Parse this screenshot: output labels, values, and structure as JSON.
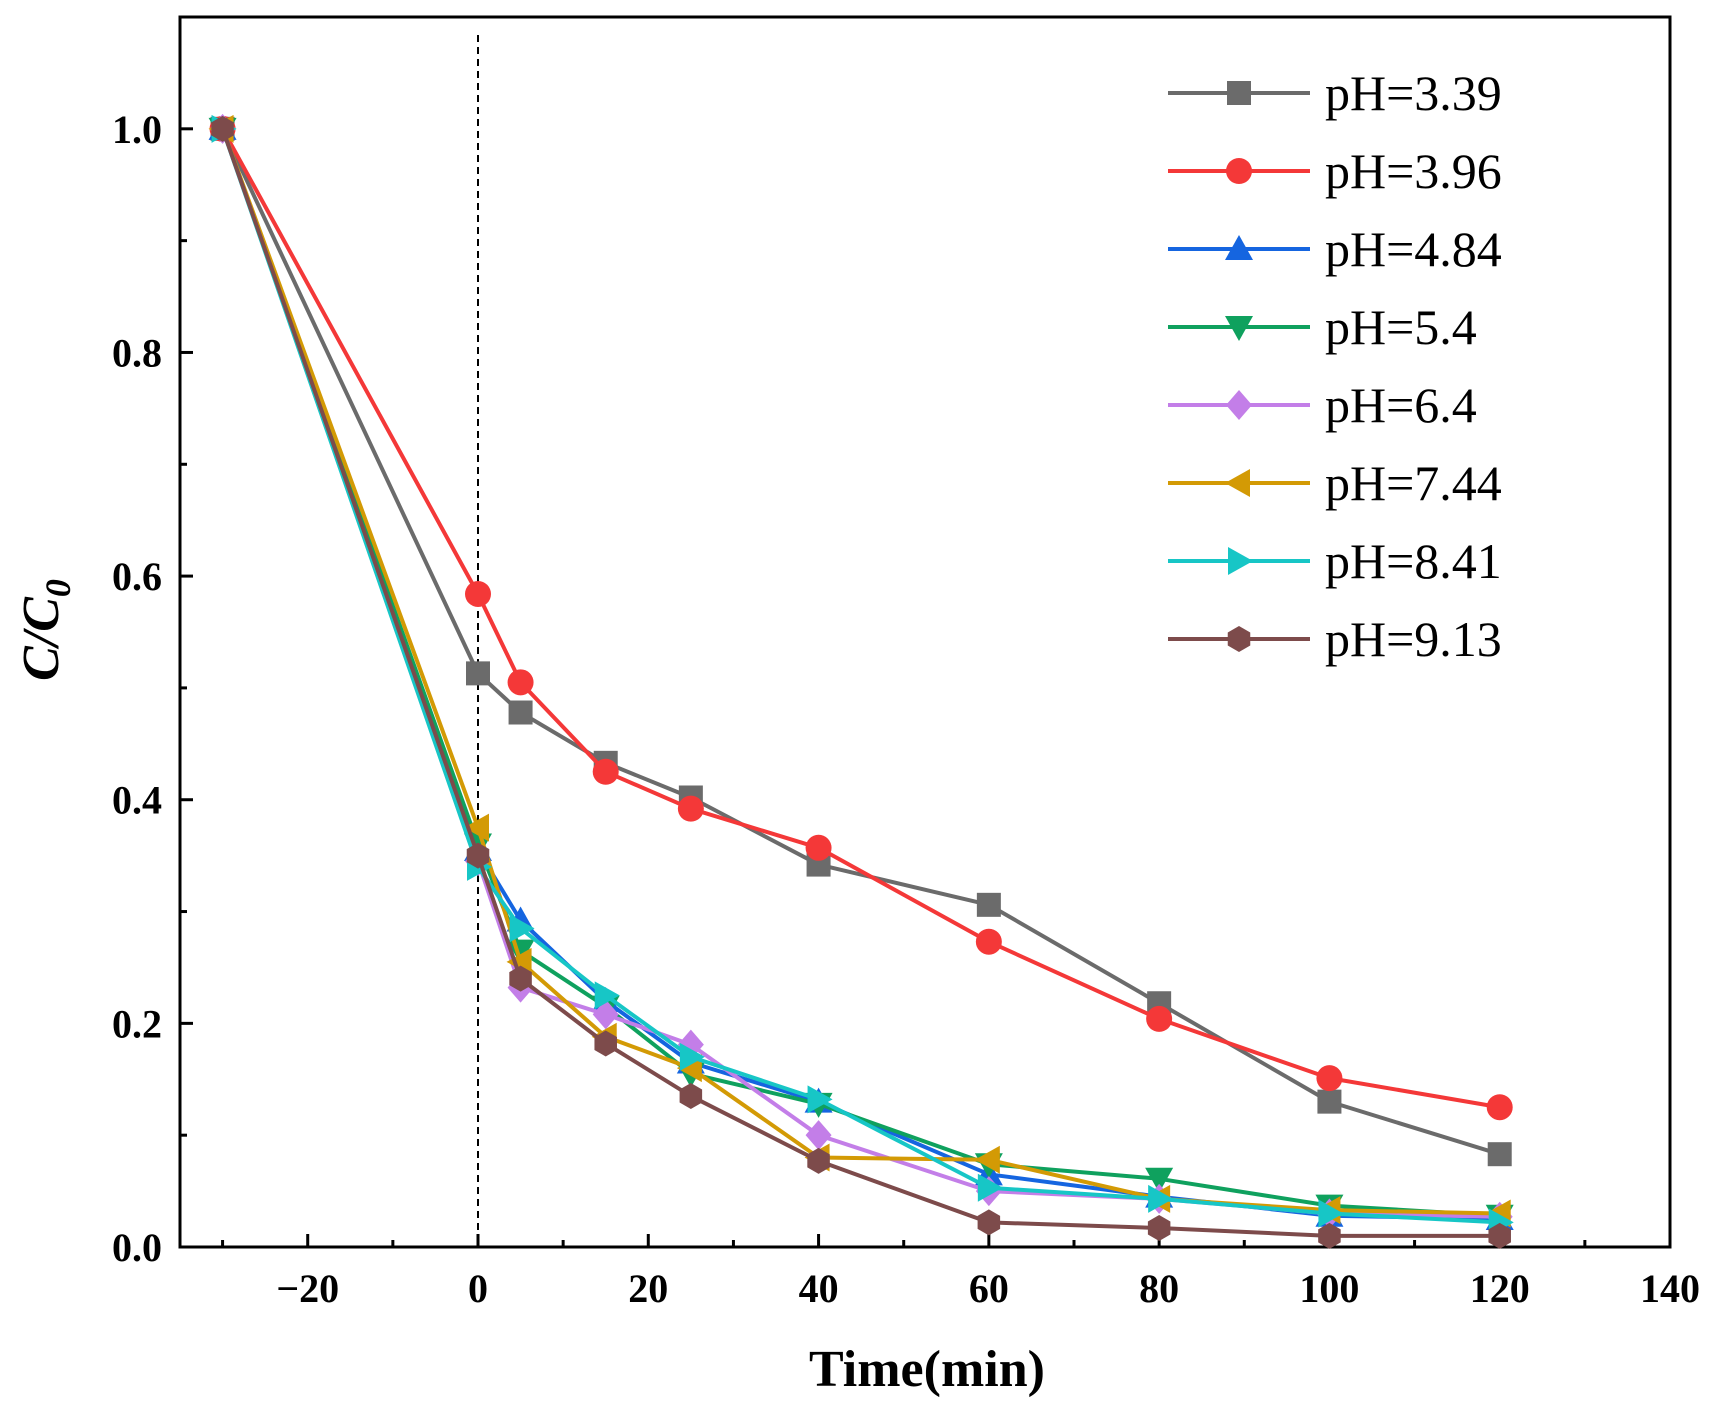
{
  "chart_data": {
    "type": "line",
    "xlabel": "Time(min)",
    "ylabel": {
      "main": "C/C",
      "sub": "0"
    },
    "xlim": [
      -35,
      140
    ],
    "ylim": [
      0,
      1.1
    ],
    "xticks": [
      -20,
      0,
      20,
      40,
      60,
      80,
      100,
      120,
      140
    ],
    "xtick_labels": [
      "−20",
      "0",
      "20",
      "40",
      "60",
      "80",
      "100",
      "120",
      "140"
    ],
    "yticks": [
      0.0,
      0.2,
      0.4,
      0.6,
      0.8,
      1.0
    ],
    "ytick_labels": [
      "0.0",
      "0.2",
      "0.4",
      "0.6",
      "0.8",
      "1.0"
    ],
    "x_minor_ticks": [
      -30,
      -10,
      10,
      30,
      50,
      70,
      90,
      110,
      130
    ],
    "y_minor_ticks": [
      0.1,
      0.3,
      0.5,
      0.7,
      0.9
    ],
    "reference_line": {
      "x": 0,
      "style": "dashed"
    },
    "grid": false,
    "legend_position": "top-right",
    "x": [
      -30,
      0,
      5,
      15,
      25,
      40,
      60,
      80,
      100,
      120
    ],
    "series": [
      {
        "name": "pH=3.39",
        "color": "#6b6b6b",
        "marker": "square",
        "values": [
          1.0,
          0.513,
          0.478,
          0.433,
          0.402,
          0.342,
          0.306,
          0.218,
          0.13,
          0.083
        ]
      },
      {
        "name": "pH=3.96",
        "color": "#f43838",
        "marker": "circle",
        "values": [
          1.0,
          0.584,
          0.505,
          0.425,
          0.392,
          0.357,
          0.273,
          0.204,
          0.151,
          0.125
        ]
      },
      {
        "name": "pH=4.84",
        "color": "#1565e0",
        "marker": "triangle-up",
        "values": [
          1.0,
          0.355,
          0.292,
          0.22,
          0.165,
          0.13,
          0.065,
          0.045,
          0.028,
          0.025
        ]
      },
      {
        "name": "pH=5.4",
        "color": "#0fa15e",
        "marker": "triangle-down",
        "values": [
          1.0,
          0.36,
          0.265,
          0.215,
          0.155,
          0.128,
          0.074,
          0.061,
          0.037,
          0.028
        ]
      },
      {
        "name": "pH=6.4",
        "color": "#c37ee8",
        "marker": "diamond",
        "values": [
          1.0,
          0.345,
          0.232,
          0.208,
          0.181,
          0.1,
          0.05,
          0.043,
          0.03,
          0.027
        ]
      },
      {
        "name": "pH=7.44",
        "color": "#d39a05",
        "marker": "triangle-left",
        "values": [
          1.0,
          0.375,
          0.255,
          0.188,
          0.16,
          0.08,
          0.078,
          0.043,
          0.033,
          0.03
        ]
      },
      {
        "name": "pH=8.41",
        "color": "#17c6c6",
        "marker": "triangle-right",
        "values": [
          1.0,
          0.34,
          0.285,
          0.225,
          0.17,
          0.132,
          0.053,
          0.043,
          0.03,
          0.022
        ]
      },
      {
        "name": "pH=9.13",
        "color": "#7d4b4b",
        "marker": "hexagon",
        "values": [
          1.0,
          0.35,
          0.24,
          0.182,
          0.135,
          0.077,
          0.022,
          0.017,
          0.01,
          0.01
        ]
      }
    ]
  }
}
